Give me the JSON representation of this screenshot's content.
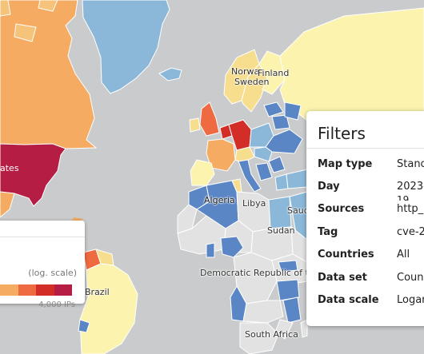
{
  "map": {
    "labels": {
      "states": "ates",
      "norway": "Norwa",
      "finland": "Finland",
      "sweden": "Sweden",
      "algeria": "Algeria",
      "libya": "Libya",
      "saudi": "Saud",
      "sudan": "Sudan",
      "drc": "Democratic Republic of the",
      "brazil": "Brazil",
      "south_africa": "South Africa"
    },
    "colors": {
      "ocean": "#c9cbcd",
      "land_nodata": "#e2e2e2",
      "low": "#5b86c5",
      "light_blue": "#8bb8d9",
      "pale_yellow": "#fbf3ae",
      "yellow": "#f6de8e",
      "orange": "#f5ab62",
      "red_orange": "#ee6a40",
      "red": "#d22d27",
      "dark_red": "#b51d45"
    }
  },
  "legend": {
    "scale_label": "(log. scale)",
    "max_label": "4,000 IPs",
    "swatches": [
      "#f5ab62",
      "#ee6a40",
      "#d22d27",
      "#b51d45"
    ]
  },
  "filters": {
    "title": "Filters",
    "rows": [
      {
        "key": "Map type",
        "value": "Stanc"
      },
      {
        "key": "Day",
        "value": "2023-"
      },
      {
        "key": "Sources",
        "value": "http_"
      },
      {
        "key": "Tag",
        "value": "cve-2"
      },
      {
        "key": "Countries",
        "value": "All"
      },
      {
        "key": "Data set",
        "value": "Coun"
      },
      {
        "key": "Data scale",
        "value": "Logar"
      }
    ],
    "day_wrap": "19"
  }
}
